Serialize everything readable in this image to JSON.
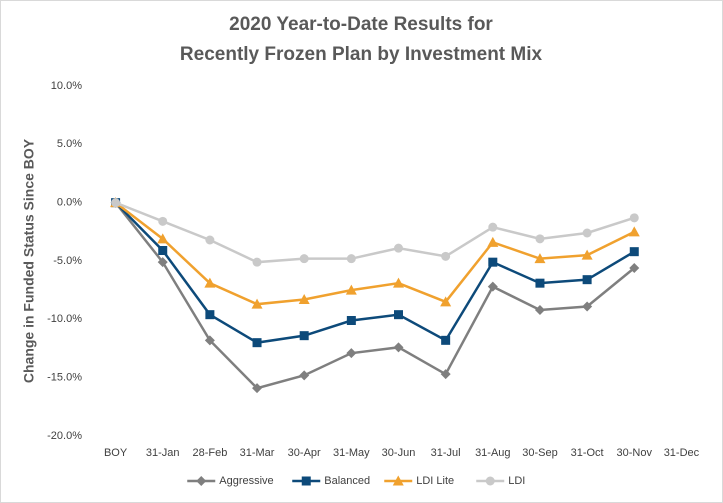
{
  "chart_data": {
    "type": "line",
    "title": [
      "2020 Year-to-Date Results for",
      "Recently Frozen Plan by Investment Mix"
    ],
    "y_label": "Change in Funded Status Since BOY",
    "categories": [
      "BOY",
      "31-Jan",
      "28-Feb",
      "31-Mar",
      "30-Apr",
      "31-May",
      "30-Jun",
      "31-Jul",
      "31-Aug",
      "30-Sep",
      "31-Oct",
      "30-Nov",
      "31-Dec"
    ],
    "series": [
      {
        "name": "Aggressive",
        "color": "#7f7f7f",
        "marker": "diamond",
        "values": [
          0,
          -5.1,
          -11.8,
          -15.9,
          -14.8,
          -12.9,
          -12.4,
          -14.7,
          -7.2,
          -9.2,
          -8.9,
          -5.6,
          null
        ]
      },
      {
        "name": "Balanced",
        "color": "#0d4a7a",
        "marker": "square",
        "values": [
          0,
          -4.1,
          -9.6,
          -12.0,
          -11.4,
          -10.1,
          -9.6,
          -11.8,
          -5.1,
          -6.9,
          -6.6,
          -4.2,
          null
        ]
      },
      {
        "name": "LDI Lite",
        "color": "#f0a12e",
        "marker": "triangle",
        "values": [
          0,
          -3.1,
          -6.9,
          -8.7,
          -8.3,
          -7.5,
          -6.9,
          -8.5,
          -3.4,
          -4.8,
          -4.5,
          -2.5,
          null
        ]
      },
      {
        "name": "LDI",
        "color": "#c9c9c9",
        "marker": "circle",
        "values": [
          0,
          -1.6,
          -3.2,
          -5.1,
          -4.8,
          -4.8,
          -3.9,
          -4.6,
          -2.1,
          -3.1,
          -2.6,
          -1.3,
          null
        ]
      }
    ],
    "ylim": [
      -20,
      10
    ],
    "yticks": [
      {
        "value": -20,
        "label": "-20.0%"
      },
      {
        "value": -15,
        "label": "-15.0%"
      },
      {
        "value": -10,
        "label": "-10.0%"
      },
      {
        "value": -5,
        "label": "-5.0%"
      },
      {
        "value": 0,
        "label": "0.0%"
      },
      {
        "value": 5,
        "label": "5.0%"
      },
      {
        "value": 10,
        "label": "10.0%"
      }
    ],
    "grid": false,
    "legend": "bottom"
  }
}
